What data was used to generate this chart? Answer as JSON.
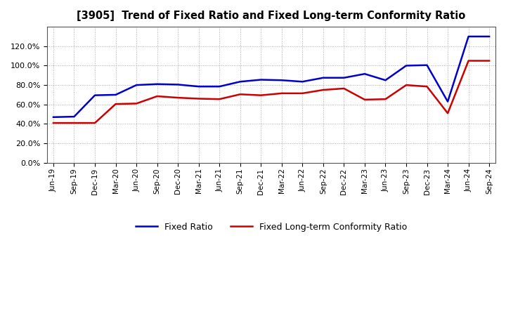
{
  "title": "[3905]  Trend of Fixed Ratio and Fixed Long-term Conformity Ratio",
  "x_labels": [
    "Jun-19",
    "Sep-19",
    "Dec-19",
    "Mar-20",
    "Jun-20",
    "Sep-20",
    "Dec-20",
    "Mar-21",
    "Jun-21",
    "Sep-21",
    "Dec-21",
    "Mar-22",
    "Jun-22",
    "Sep-22",
    "Dec-22",
    "Mar-23",
    "Jun-23",
    "Sep-23",
    "Dec-23",
    "Mar-24",
    "Jun-24",
    "Sep-24"
  ],
  "fixed_ratio": [
    47.0,
    47.5,
    69.5,
    70.0,
    80.0,
    81.0,
    80.5,
    78.5,
    78.5,
    83.5,
    85.5,
    85.0,
    83.5,
    87.5,
    87.5,
    91.5,
    85.0,
    100.0,
    100.5,
    63.0,
    130.0,
    130.0
  ],
  "fixed_lt_ratio": [
    41.0,
    41.0,
    41.0,
    60.5,
    61.0,
    68.5,
    67.0,
    66.0,
    65.5,
    70.5,
    69.5,
    71.5,
    71.5,
    75.0,
    76.5,
    65.0,
    65.5,
    80.0,
    78.5,
    51.0,
    105.0,
    105.0
  ],
  "fixed_ratio_color": "#0000cc",
  "fixed_lt_ratio_color": "#cc0000",
  "ylim": [
    0,
    140
  ],
  "yticks": [
    0,
    20,
    40,
    60,
    80,
    100,
    120
  ],
  "background_color": "#ffffff",
  "plot_bg_color": "#ffffff",
  "grid_color": "#aaaaaa",
  "legend_fixed": "Fixed Ratio",
  "legend_fixed_lt": "Fixed Long-term Conformity Ratio",
  "line_width": 1.8
}
